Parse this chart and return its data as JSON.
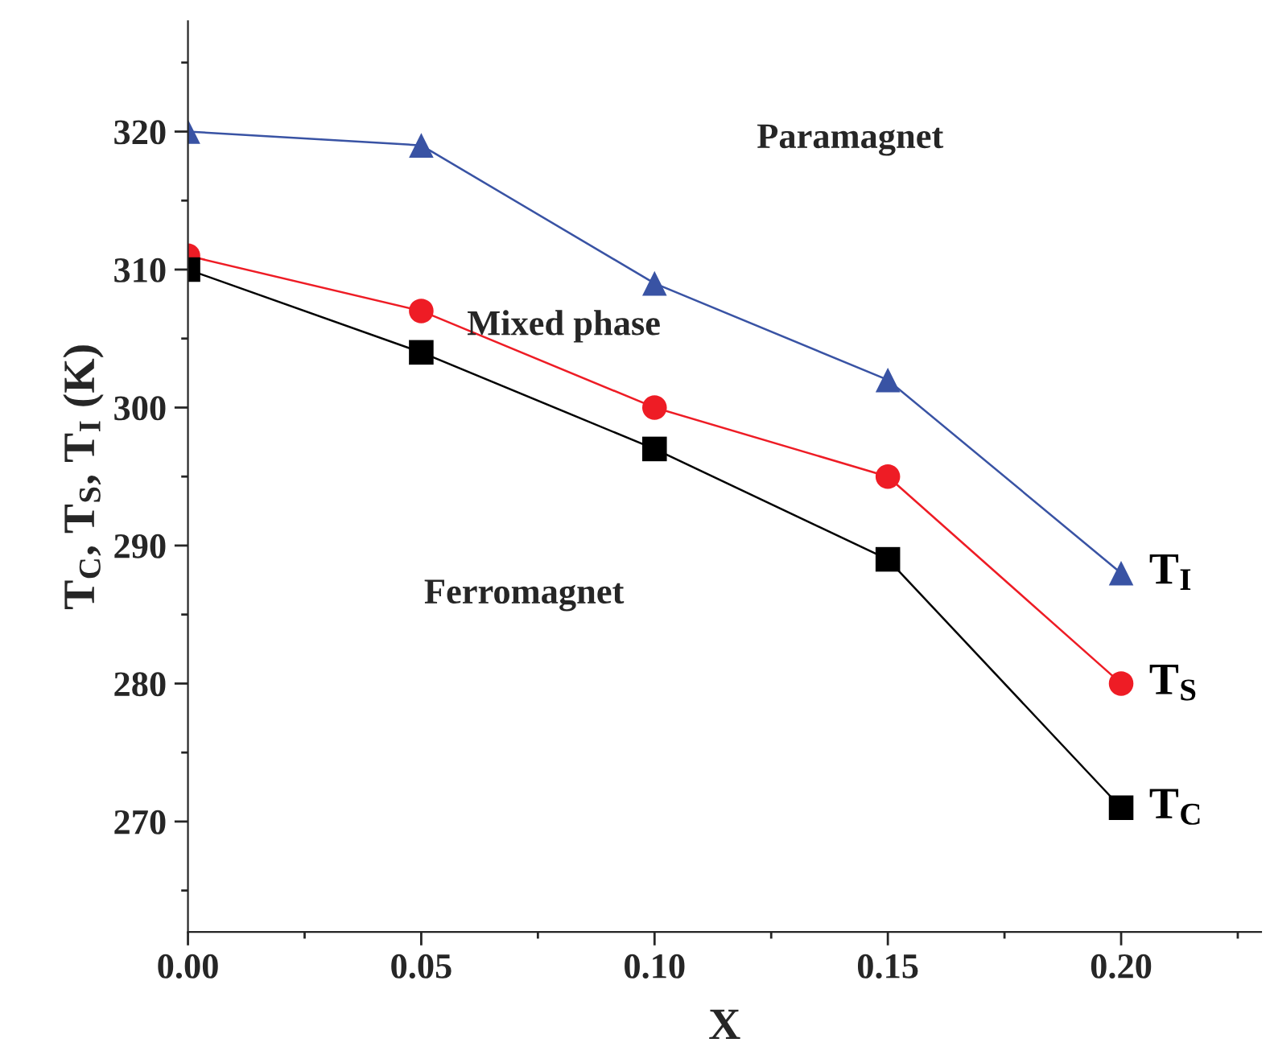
{
  "chart_data": {
    "type": "line",
    "xlabel": "X",
    "ylabel": "T$_{C}$, T$_{S}$, T$_{I}$ (K)",
    "x": [
      0.0,
      0.05,
      0.1,
      0.15,
      0.2
    ],
    "series": [
      {
        "name": "T$_{I}$",
        "color": "#3953a4",
        "values": [
          320,
          319,
          309,
          302,
          288
        ],
        "marker": "triangle"
      },
      {
        "name": "T$_{S}$",
        "color": "#ee1c25",
        "values": [
          311,
          307,
          300,
          295,
          280
        ],
        "marker": "circle"
      },
      {
        "name": "T$_{C}$",
        "color": "#000000",
        "values": [
          310,
          304,
          297,
          289,
          271
        ],
        "marker": "square"
      }
    ],
    "xlim": [
      0.0,
      0.23
    ],
    "xticks": [
      {
        "value": 0.0,
        "label": "0.00"
      },
      {
        "value": 0.05,
        "label": "0.05"
      },
      {
        "value": 0.1,
        "label": "0.10"
      },
      {
        "value": 0.15,
        "label": "0.15"
      },
      {
        "value": 0.2,
        "label": "0.20"
      }
    ],
    "ylim": [
      262,
      328
    ],
    "yticks": [
      270,
      280,
      290,
      300,
      310,
      320
    ],
    "annotations": [
      "Paramagnet",
      "Mixed phase",
      "Ferromagnet"
    ],
    "grid": false,
    "legend": false,
    "line_style": "solid"
  }
}
